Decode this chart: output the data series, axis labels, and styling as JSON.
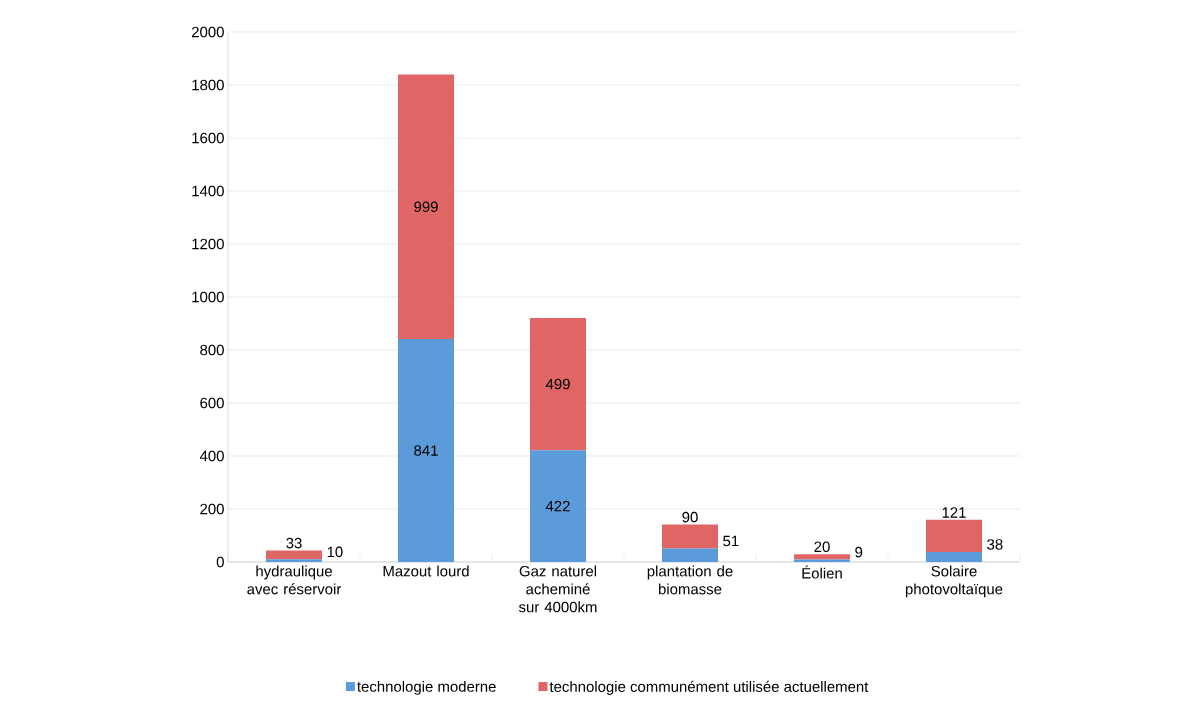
{
  "chart_data": {
    "type": "bar",
    "stacked": true,
    "categories": [
      "hydraulique avec réservoir",
      "Mazout lourd",
      "Gaz naturel acheminé sur 4000km",
      "plantation de biomasse",
      "Éolien",
      "Solaire photovoltaïque"
    ],
    "series": [
      {
        "name": "technologie moderne",
        "color": "#5b9bd9",
        "values": [
          10,
          841,
          422,
          51,
          9,
          38
        ]
      },
      {
        "name": "technologie communément utilisée actuellement",
        "color": "#e06666",
        "values": [
          33,
          999,
          499,
          90,
          20,
          121
        ]
      }
    ],
    "ylim": [
      0,
      2000
    ],
    "yticks": [
      0,
      200,
      400,
      600,
      800,
      1000,
      1200,
      1400,
      1600,
      1800,
      2000
    ],
    "grid": "y",
    "legend": "bottom",
    "data_labels": true
  }
}
